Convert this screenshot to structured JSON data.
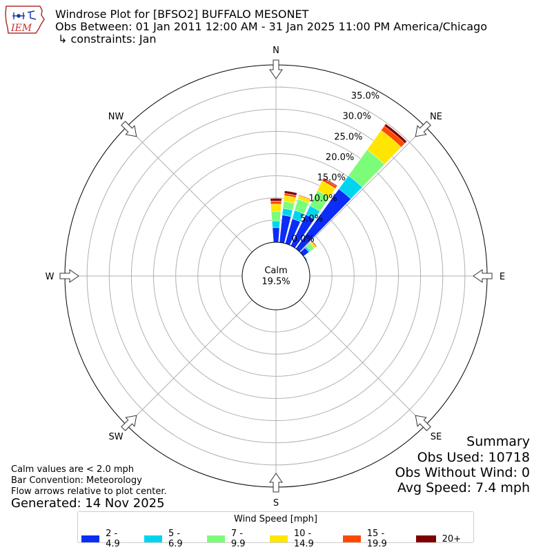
{
  "header": {
    "title": "Windrose Plot for [BFSO2] BUFFALO MESONET",
    "obs_between": "Obs Between: 01 Jan 2011 12:00 AM - 31 Jan 2025 11:00 PM America/Chicago",
    "constraints": "↳ constraints: Jan",
    "logo_text": "IEM"
  },
  "summary": {
    "heading": "Summary",
    "obs_used": "Obs Used: 10718",
    "obs_without_wind": "Obs Without Wind: 0",
    "avg_speed": "Avg Speed: 7.4 mph"
  },
  "notes": {
    "calm": "Calm values are < 2.0 mph",
    "bar_convention": "Bar Convention: Meteorology",
    "flow_arrows": "Flow arrows relative to plot center.",
    "generated": "Generated: 14 Nov 2025"
  },
  "chart_data": {
    "type": "windrose",
    "calm_label": "Calm",
    "calm_value": "19.5%",
    "direction_labels": [
      "N",
      "NE",
      "E",
      "SE",
      "S",
      "SW",
      "W",
      "NW"
    ],
    "radial_ticks": [
      "0.0%",
      "5.0%",
      "10.0%",
      "15.0%",
      "20.0%",
      "25.0%",
      "30.0%",
      "35.0%"
    ],
    "radial_max": 40,
    "legend_title": "Wind Speed [mph]",
    "speed_bins": [
      {
        "label": "2 - 4.9",
        "color": "#0c2df5"
      },
      {
        "label": "5 - 6.9",
        "color": "#00d5f0"
      },
      {
        "label": "7 - 9.9",
        "color": "#7cfd7a"
      },
      {
        "label": "10 - 14.9",
        "color": "#ffe600"
      },
      {
        "label": "15 - 19.9",
        "color": "#ff4a00"
      },
      {
        "label": "20+",
        "color": "#800000"
      }
    ],
    "sectors": [
      {
        "direction_deg": 0,
        "values": [
          3.3,
          1.5,
          2.2,
          1.6,
          0.7,
          0.6
        ]
      },
      {
        "direction_deg": 10,
        "values": [
          6.2,
          1.5,
          1.6,
          1.3,
          0.5,
          0.6
        ]
      },
      {
        "direction_deg": 20,
        "values": [
          5.8,
          2.0,
          2.6,
          0.8,
          0.2,
          0.0
        ]
      },
      {
        "direction_deg": 30,
        "values": [
          7.8,
          2.2,
          3.8,
          2.4,
          0.6,
          0.2
        ]
      },
      {
        "direction_deg": 40,
        "values": [
          16.6,
          3.7,
          7.2,
          5.4,
          1.2,
          0.6
        ]
      },
      {
        "direction_deg": 50,
        "values": [
          1.5,
          0.4,
          1.1,
          0.5,
          0.2,
          0.1
        ]
      },
      {
        "direction_deg": 60,
        "values": [
          0.2,
          0.1,
          0.1,
          0.0,
          0.0,
          0.0
        ]
      },
      {
        "direction_deg": 70,
        "values": [
          0,
          0,
          0,
          0,
          0,
          0
        ]
      },
      {
        "direction_deg": 80,
        "values": [
          0,
          0,
          0,
          0,
          0,
          0
        ]
      },
      {
        "direction_deg": 90,
        "values": [
          0,
          0,
          0,
          0,
          0,
          0
        ]
      },
      {
        "direction_deg": 100,
        "values": [
          0,
          0,
          0,
          0,
          0,
          0
        ]
      },
      {
        "direction_deg": 110,
        "values": [
          0,
          0,
          0,
          0,
          0,
          0
        ]
      },
      {
        "direction_deg": 120,
        "values": [
          0,
          0,
          0,
          0,
          0,
          0
        ]
      },
      {
        "direction_deg": 130,
        "values": [
          0,
          0,
          0,
          0,
          0,
          0
        ]
      },
      {
        "direction_deg": 140,
        "values": [
          0,
          0,
          0,
          0,
          0,
          0
        ]
      },
      {
        "direction_deg": 150,
        "values": [
          0,
          0,
          0,
          0,
          0,
          0
        ]
      },
      {
        "direction_deg": 160,
        "values": [
          0,
          0,
          0,
          0,
          0,
          0
        ]
      },
      {
        "direction_deg": 170,
        "values": [
          0,
          0,
          0,
          0,
          0,
          0
        ]
      },
      {
        "direction_deg": 180,
        "values": [
          0,
          0,
          0.05,
          0,
          0,
          0
        ]
      },
      {
        "direction_deg": 190,
        "values": [
          0,
          0,
          0,
          0,
          0,
          0
        ]
      },
      {
        "direction_deg": 200,
        "values": [
          0,
          0,
          0,
          0,
          0,
          0
        ]
      },
      {
        "direction_deg": 210,
        "values": [
          0,
          0,
          0,
          0,
          0,
          0
        ]
      },
      {
        "direction_deg": 220,
        "values": [
          0,
          0,
          0,
          0,
          0,
          0
        ]
      },
      {
        "direction_deg": 230,
        "values": [
          0,
          0,
          0,
          0,
          0,
          0
        ]
      },
      {
        "direction_deg": 240,
        "values": [
          0,
          0,
          0,
          0,
          0,
          0
        ]
      },
      {
        "direction_deg": 250,
        "values": [
          0,
          0,
          0,
          0,
          0,
          0
        ]
      },
      {
        "direction_deg": 260,
        "values": [
          0,
          0,
          0,
          0,
          0,
          0
        ]
      },
      {
        "direction_deg": 270,
        "values": [
          0,
          0,
          0,
          0,
          0,
          0
        ]
      },
      {
        "direction_deg": 280,
        "values": [
          0,
          0,
          0,
          0,
          0,
          0
        ]
      },
      {
        "direction_deg": 290,
        "values": [
          0,
          0,
          0,
          0,
          0,
          0
        ]
      },
      {
        "direction_deg": 300,
        "values": [
          0,
          0,
          0,
          0,
          0,
          0
        ]
      },
      {
        "direction_deg": 310,
        "values": [
          0,
          0,
          0,
          0,
          0,
          0
        ]
      },
      {
        "direction_deg": 320,
        "values": [
          0,
          0,
          0,
          0,
          0,
          0
        ]
      },
      {
        "direction_deg": 330,
        "values": [
          0,
          0,
          0,
          0,
          0,
          0
        ]
      },
      {
        "direction_deg": 340,
        "values": [
          0,
          0,
          0,
          0,
          0,
          0
        ]
      },
      {
        "direction_deg": 350,
        "values": [
          0,
          0,
          0,
          0,
          0,
          0
        ]
      }
    ]
  }
}
